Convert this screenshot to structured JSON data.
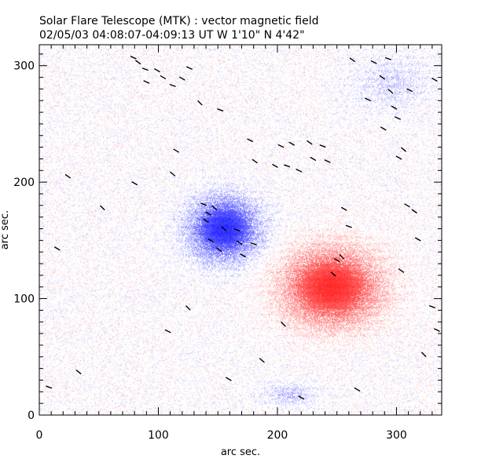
{
  "chart_data": {
    "type": "heatmap",
    "title": "Solar Flare Telescope (MTK) : vector magnetic field",
    "subtitle": "02/05/03   04:08:07-04:09:13 UT     W 1'10\"   N 4'42\"",
    "xlabel": "arc sec.",
    "ylabel": "arc sec.",
    "xlim": [
      0,
      338
    ],
    "ylim": [
      0,
      318
    ],
    "x_ticks": [
      0,
      100,
      200,
      300
    ],
    "y_ticks": [
      0,
      100,
      200,
      300
    ],
    "x_tick_labels": [
      "0",
      "100",
      "200",
      "300"
    ],
    "y_tick_labels": [
      "0",
      "100",
      "200",
      "300"
    ],
    "colors": {
      "positive_field": "#ff2a2a",
      "negative_field": "#2a2aff",
      "background": "#ffffff",
      "axis": "#000000"
    },
    "polarity_regions": [
      {
        "name": "negative polarity spot",
        "center_x": 155,
        "center_y": 160,
        "radius_x": 30,
        "radius_y": 28,
        "sign": -1,
        "strength": 1.0
      },
      {
        "name": "positive polarity spot",
        "center_x": 245,
        "center_y": 110,
        "radius_x": 42,
        "radius_y": 34,
        "sign": 1,
        "strength": 1.0
      },
      {
        "name": "weak negative patch",
        "center_x": 210,
        "center_y": 18,
        "radius_x": 22,
        "radius_y": 10,
        "sign": -1,
        "strength": 0.25
      },
      {
        "name": "weak negative patch upper right",
        "center_x": 295,
        "center_y": 285,
        "radius_x": 35,
        "radius_y": 25,
        "sign": -1,
        "strength": 0.18
      }
    ],
    "transverse_field_vectors": [
      [
        8,
        24,
        20
      ],
      [
        15,
        143,
        30
      ],
      [
        24,
        205,
        35
      ],
      [
        33,
        37,
        40
      ],
      [
        53,
        178,
        45
      ],
      [
        79,
        307,
        25
      ],
      [
        80,
        199,
        30
      ],
      [
        83,
        303,
        35
      ],
      [
        89,
        297,
        20
      ],
      [
        90,
        286,
        25
      ],
      [
        99,
        296,
        30
      ],
      [
        104,
        290,
        30
      ],
      [
        108,
        72,
        25
      ],
      [
        112,
        207,
        40
      ],
      [
        112,
        283,
        20
      ],
      [
        115,
        227,
        30
      ],
      [
        120,
        289,
        30
      ],
      [
        125,
        92,
        45
      ],
      [
        126,
        298,
        25
      ],
      [
        135,
        268,
        45
      ],
      [
        138,
        181,
        20
      ],
      [
        140,
        167,
        35
      ],
      [
        142,
        173,
        30
      ],
      [
        144,
        150,
        30
      ],
      [
        147,
        178,
        40
      ],
      [
        151,
        142,
        35
      ],
      [
        152,
        262,
        20
      ],
      [
        155,
        160,
        40
      ],
      [
        159,
        31,
        30
      ],
      [
        166,
        159,
        20
      ],
      [
        168,
        148,
        35
      ],
      [
        171,
        137,
        30
      ],
      [
        177,
        236,
        25
      ],
      [
        180,
        147,
        20
      ],
      [
        181,
        218,
        35
      ],
      [
        187,
        47,
        40
      ],
      [
        198,
        214,
        30
      ],
      [
        203,
        231,
        25
      ],
      [
        205,
        78,
        45
      ],
      [
        208,
        214,
        20
      ],
      [
        212,
        233,
        30
      ],
      [
        218,
        210,
        25
      ],
      [
        220,
        15,
        30
      ],
      [
        227,
        234,
        35
      ],
      [
        230,
        220,
        30
      ],
      [
        238,
        231,
        20
      ],
      [
        242,
        218,
        25
      ],
      [
        247,
        121,
        40
      ],
      [
        250,
        133,
        30
      ],
      [
        254,
        136,
        45
      ],
      [
        256,
        177,
        30
      ],
      [
        260,
        162,
        20
      ],
      [
        263,
        305,
        35
      ],
      [
        267,
        22,
        30
      ],
      [
        276,
        271,
        25
      ],
      [
        281,
        303,
        25
      ],
      [
        288,
        290,
        35
      ],
      [
        289,
        246,
        30
      ],
      [
        293,
        306,
        20
      ],
      [
        295,
        278,
        40
      ],
      [
        298,
        264,
        30
      ],
      [
        301,
        255,
        25
      ],
      [
        302,
        221,
        30
      ],
      [
        304,
        124,
        35
      ],
      [
        306,
        228,
        40
      ],
      [
        309,
        180,
        30
      ],
      [
        311,
        279,
        25
      ],
      [
        315,
        175,
        35
      ],
      [
        318,
        151,
        30
      ],
      [
        323,
        52,
        45
      ],
      [
        330,
        93,
        20
      ],
      [
        332,
        288,
        30
      ],
      [
        334,
        73,
        25
      ]
    ],
    "noise_seed": 31337,
    "legend": "none",
    "grid": false
  }
}
